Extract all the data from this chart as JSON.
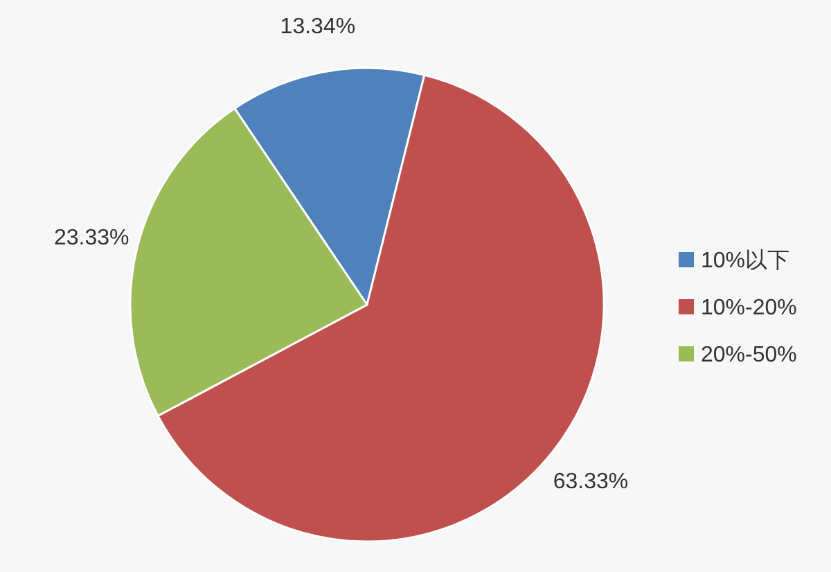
{
  "chart_data": {
    "type": "pie",
    "categories": [
      "10%以下",
      "10%-20%",
      "20%-50%"
    ],
    "values": [
      13.34,
      63.33,
      23.33
    ],
    "colors": [
      "#4f81bd",
      "#c0504d",
      "#9bbb59"
    ],
    "value_labels": [
      "13.34%",
      "63.33%",
      "23.33%"
    ],
    "legend": "right"
  }
}
